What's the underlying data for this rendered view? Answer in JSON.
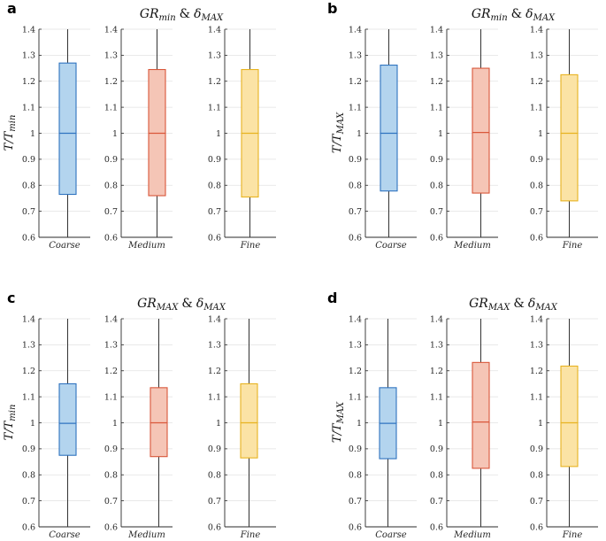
{
  "chart_data": [
    {
      "id": "a",
      "panel_label": "a",
      "type": "box",
      "title": "GR_min & δ_MAX",
      "title_parts": {
        "base1": "GR",
        "sub1": "min",
        "amp": "&",
        "base2": "δ",
        "sub2": "MAX"
      },
      "ylabel": "T/T_min",
      "ylabel_parts": {
        "base": "T/T",
        "sub": "min"
      },
      "ylim": [
        0.6,
        1.4
      ],
      "yticks": [
        "0.6",
        "0.7",
        "0.8",
        "0.9",
        "1",
        "1.1",
        "1.2",
        "1.3",
        "1.4"
      ],
      "categories": [
        "Coarse",
        "Medium",
        "Fine"
      ],
      "series": [
        {
          "name": "Coarse",
          "min": 0.6,
          "q1": 0.765,
          "median": 1.0,
          "q3": 1.27,
          "max": 1.4
        },
        {
          "name": "Medium",
          "min": 0.6,
          "q1": 0.76,
          "median": 1.0,
          "q3": 1.245,
          "max": 1.4
        },
        {
          "name": "Fine",
          "min": 0.6,
          "q1": 0.755,
          "median": 1.0,
          "q3": 1.245,
          "max": 1.4
        }
      ]
    },
    {
      "id": "b",
      "panel_label": "b",
      "type": "box",
      "title": "GR_min & δ_MAX",
      "title_parts": {
        "base1": "GR",
        "sub1": "min",
        "amp": "&",
        "base2": "δ",
        "sub2": "MAX"
      },
      "ylabel": "T/T_MAX",
      "ylabel_parts": {
        "base": "T/T",
        "sub": "MAX"
      },
      "ylim": [
        0.6,
        1.4
      ],
      "yticks": [
        "0.6",
        "0.7",
        "0.8",
        "0.9",
        "1",
        "1.1",
        "1.2",
        "1.3",
        "1.4"
      ],
      "categories": [
        "Coarse",
        "Medium",
        "Fine"
      ],
      "series": [
        {
          "name": "Coarse",
          "min": 0.6,
          "q1": 0.778,
          "median": 1.0,
          "q3": 1.262,
          "max": 1.4
        },
        {
          "name": "Medium",
          "min": 0.6,
          "q1": 0.77,
          "median": 1.003,
          "q3": 1.25,
          "max": 1.4
        },
        {
          "name": "Fine",
          "min": 0.6,
          "q1": 0.74,
          "median": 1.0,
          "q3": 1.225,
          "max": 1.4
        }
      ]
    },
    {
      "id": "c",
      "panel_label": "c",
      "type": "box",
      "title": "GR_MAX & δ_MAX",
      "title_parts": {
        "base1": "GR",
        "sub1": "MAX",
        "amp": "&",
        "base2": "δ",
        "sub2": "MAX"
      },
      "ylabel": "T/T_min",
      "ylabel_parts": {
        "base": "T/T",
        "sub": "min"
      },
      "ylim": [
        0.6,
        1.4
      ],
      "yticks": [
        "0.6",
        "0.7",
        "0.8",
        "0.9",
        "1",
        "1.1",
        "1.2",
        "1.3",
        "1.4"
      ],
      "categories": [
        "Coarse",
        "Medium",
        "Fine"
      ],
      "series": [
        {
          "name": "Coarse",
          "min": 0.6,
          "q1": 0.875,
          "median": 0.998,
          "q3": 1.15,
          "max": 1.4
        },
        {
          "name": "Medium",
          "min": 0.6,
          "q1": 0.87,
          "median": 1.0,
          "q3": 1.135,
          "max": 1.4
        },
        {
          "name": "Fine",
          "min": 0.6,
          "q1": 0.865,
          "median": 1.0,
          "q3": 1.15,
          "max": 1.4
        }
      ]
    },
    {
      "id": "d",
      "panel_label": "d",
      "type": "box",
      "title": "GR_MAX & δ_MAX",
      "title_parts": {
        "base1": "GR",
        "sub1": "MAX",
        "amp": "&",
        "base2": "δ",
        "sub2": "MAX"
      },
      "ylabel": "T/T_MAX",
      "ylabel_parts": {
        "base": "T/T",
        "sub": "MAX"
      },
      "ylim": [
        0.6,
        1.4
      ],
      "yticks": [
        "0.6",
        "0.7",
        "0.8",
        "0.9",
        "1",
        "1.1",
        "1.2",
        "1.3",
        "1.4"
      ],
      "categories": [
        "Coarse",
        "Medium",
        "Fine"
      ],
      "series": [
        {
          "name": "Coarse",
          "min": 0.6,
          "q1": 0.862,
          "median": 0.998,
          "q3": 1.135,
          "max": 1.4
        },
        {
          "name": "Medium",
          "min": 0.6,
          "q1": 0.825,
          "median": 1.003,
          "q3": 1.232,
          "max": 1.4
        },
        {
          "name": "Fine",
          "min": 0.6,
          "q1": 0.832,
          "median": 1.0,
          "q3": 1.218,
          "max": 1.4
        }
      ]
    }
  ],
  "colors": {
    "series_stroke": [
      "#2f73c0",
      "#d9573a",
      "#e8b320"
    ],
    "series_fill": [
      "#b3d4ee",
      "#f5c5b6",
      "#fbe3a5"
    ],
    "whisker": "#333333",
    "grid": "#e2e2e2",
    "axis": "#2a2a2a"
  }
}
